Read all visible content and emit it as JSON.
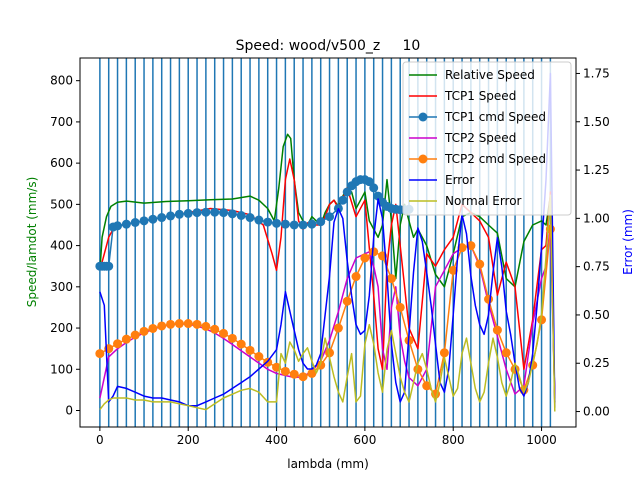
{
  "chart_data": {
    "type": "line",
    "title": "Speed: wood/v500_z     10",
    "xlabel": "lambda (mm)",
    "ylabel": "Speed/lamdot (mm/s)",
    "ylabel_right": "Error (mm)",
    "xlim": [
      -45,
      1078
    ],
    "ylim": [
      -40,
      855
    ],
    "ylim_right": [
      -0.08,
      1.83
    ],
    "xticks": [
      0,
      200,
      400,
      600,
      800,
      1000
    ],
    "yticks": [
      0,
      100,
      200,
      300,
      400,
      500,
      600,
      700,
      800
    ],
    "yticks_right": [
      0.0,
      0.25,
      0.5,
      0.75,
      1.0,
      1.25,
      1.5,
      1.75
    ],
    "vertical_lines_x": [
      0,
      20,
      40,
      60,
      80,
      100,
      120,
      140,
      160,
      180,
      200,
      220,
      240,
      260,
      280,
      300,
      320,
      340,
      360,
      380,
      400,
      420,
      440,
      460,
      480,
      500,
      520,
      540,
      560,
      580,
      600,
      620,
      640,
      660,
      680,
      700,
      720,
      740,
      760,
      780,
      800,
      820,
      840,
      860,
      880,
      900,
      920,
      940,
      960,
      980,
      1000,
      1020
    ],
    "legend_position": "upper-right",
    "series": [
      {
        "name": "Relative Speed",
        "axis": "left",
        "color": "#008000",
        "marker": "none",
        "x": [
          0,
          5,
          15,
          25,
          40,
          60,
          100,
          150,
          200,
          250,
          300,
          340,
          360,
          380,
          395,
          405,
          415,
          425,
          432,
          440,
          450,
          460,
          470,
          480,
          490,
          500,
          510,
          520,
          530,
          540,
          550,
          560,
          570,
          580,
          590,
          600,
          610,
          620,
          630,
          640,
          650,
          660,
          670,
          680,
          690,
          700,
          710,
          720,
          740,
          760,
          780,
          800,
          820,
          840,
          860,
          880,
          900,
          920,
          940,
          960,
          980,
          1000,
          1010,
          1020,
          1030
        ],
        "y": [
          340,
          420,
          470,
          495,
          505,
          508,
          503,
          507,
          509,
          511,
          513,
          520,
          510,
          490,
          460,
          540,
          640,
          670,
          660,
          560,
          480,
          460,
          450,
          470,
          460,
          450,
          480,
          500,
          510,
          495,
          520,
          540,
          530,
          490,
          510,
          530,
          460,
          440,
          420,
          450,
          560,
          460,
          320,
          450,
          500,
          460,
          420,
          440,
          400,
          330,
          300,
          380,
          470,
          480,
          470,
          450,
          430,
          320,
          300,
          410,
          450,
          460,
          450,
          520,
          20
        ]
      },
      {
        "name": "TCP1 Speed",
        "axis": "left",
        "color": "#ff0000",
        "marker": "none",
        "x": [
          0,
          10,
          20,
          30,
          50,
          100,
          150,
          200,
          250,
          300,
          340,
          370,
          390,
          400,
          410,
          420,
          430,
          440,
          450,
          460,
          470,
          480,
          490,
          500,
          510,
          520,
          530,
          540,
          560,
          580,
          600,
          620,
          630,
          640,
          650,
          660,
          670,
          680,
          700,
          720,
          740,
          760,
          780,
          800,
          820,
          840,
          860,
          880,
          900,
          920,
          940,
          960,
          980,
          1000,
          1010,
          1020,
          1030
        ],
        "y": [
          340,
          380,
          420,
          440,
          450,
          460,
          470,
          480,
          490,
          485,
          475,
          450,
          380,
          340,
          420,
          560,
          610,
          560,
          460,
          440,
          455,
          460,
          450,
          450,
          470,
          500,
          510,
          490,
          540,
          470,
          510,
          280,
          150,
          100,
          350,
          450,
          500,
          400,
          200,
          150,
          380,
          350,
          390,
          420,
          500,
          480,
          460,
          420,
          280,
          360,
          300,
          100,
          220,
          390,
          400,
          530,
          20
        ]
      },
      {
        "name": "TCP1 cmd Speed",
        "axis": "left",
        "color": "#1f77b4",
        "marker": "circle",
        "x": [
          0,
          5,
          10,
          15,
          20,
          30,
          40,
          60,
          80,
          100,
          120,
          140,
          160,
          180,
          200,
          220,
          240,
          260,
          280,
          300,
          320,
          340,
          360,
          380,
          400,
          420,
          440,
          460,
          480,
          500,
          520,
          540,
          550,
          560,
          570,
          580,
          590,
          600,
          610,
          620,
          630,
          640,
          650,
          660,
          670,
          680,
          690,
          700
        ],
        "y": [
          350,
          350,
          350,
          350,
          350,
          445,
          448,
          452,
          456,
          460,
          464,
          468,
          472,
          476,
          478,
          480,
          481,
          481,
          480,
          477,
          473,
          468,
          462,
          457,
          454,
          452,
          450,
          450,
          452,
          458,
          470,
          490,
          510,
          530,
          545,
          555,
          560,
          560,
          555,
          540,
          520,
          505,
          495,
          490,
          488,
          487,
          487,
          488
        ]
      },
      {
        "name": "TCP2 Speed",
        "axis": "left",
        "color": "#cc00cc",
        "marker": "none",
        "x": [
          0,
          20,
          40,
          60,
          80,
          100,
          120,
          140,
          160,
          180,
          200,
          220,
          240,
          260,
          280,
          300,
          320,
          340,
          360,
          380,
          400,
          420,
          440,
          460,
          480,
          500,
          520,
          540,
          560,
          580,
          600,
          610,
          620,
          630,
          640,
          650,
          660,
          670,
          680,
          690,
          700,
          720,
          740,
          760,
          780,
          800,
          820,
          840,
          860,
          880,
          900,
          920,
          940,
          960,
          980,
          1000,
          1010,
          1020,
          1030
        ],
        "y": [
          30,
          130,
          150,
          165,
          178,
          188,
          197,
          204,
          208,
          210,
          209,
          205,
          198,
          188,
          175,
          160,
          145,
          130,
          115,
          100,
          90,
          85,
          80,
          82,
          95,
          120,
          170,
          240,
          320,
          370,
          380,
          385,
          350,
          300,
          150,
          100,
          250,
          300,
          180,
          120,
          80,
          60,
          100,
          300,
          340,
          380,
          395,
          400,
          350,
          260,
          180,
          100,
          40,
          60,
          210,
          320,
          350,
          450,
          30
        ]
      },
      {
        "name": "TCP2 cmd Speed",
        "axis": "left",
        "color": "#ff7f0e",
        "marker": "circle",
        "x": [
          0,
          20,
          40,
          60,
          80,
          100,
          120,
          140,
          160,
          180,
          200,
          220,
          240,
          260,
          280,
          300,
          320,
          340,
          360,
          380,
          400,
          420,
          440,
          460,
          480,
          500,
          520,
          540,
          560,
          580,
          600,
          620,
          640,
          660,
          680,
          700,
          720,
          740,
          760,
          780,
          800,
          820,
          840,
          860,
          880,
          900,
          920,
          940,
          960,
          980,
          1000,
          1020
        ],
        "y": [
          138,
          150,
          162,
          173,
          183,
          192,
          199,
          205,
          209,
          211,
          211,
          209,
          204,
          197,
          187,
          175,
          161,
          146,
          131,
          117,
          105,
          95,
          88,
          82,
          90,
          110,
          140,
          200,
          265,
          325,
          370,
          385,
          375,
          320,
          250,
          170,
          100,
          60,
          40,
          140,
          340,
          395,
          400,
          355,
          270,
          195,
          140,
          100,
          50,
          110,
          220,
          440
        ]
      },
      {
        "name": "Error",
        "axis": "right",
        "color": "#0000ff",
        "marker": "none",
        "x": [
          0,
          10,
          20,
          30,
          40,
          60,
          80,
          100,
          120,
          140,
          160,
          180,
          200,
          220,
          240,
          260,
          280,
          300,
          320,
          340,
          360,
          380,
          400,
          410,
          420,
          430,
          440,
          450,
          460,
          470,
          480,
          490,
          500,
          510,
          520,
          530,
          540,
          550,
          560,
          570,
          580,
          590,
          600,
          610,
          620,
          630,
          640,
          650,
          660,
          670,
          680,
          690,
          700,
          710,
          720,
          730,
          740,
          750,
          760,
          770,
          780,
          790,
          800,
          810,
          820,
          830,
          840,
          850,
          860,
          870,
          880,
          890,
          900,
          910,
          920,
          930,
          940,
          950,
          960,
          970,
          980,
          990,
          1000,
          1010,
          1020,
          1030
        ],
        "y": [
          0.62,
          0.55,
          0.05,
          0.08,
          0.13,
          0.12,
          0.1,
          0.08,
          0.07,
          0.07,
          0.06,
          0.05,
          0.03,
          0.03,
          0.05,
          0.07,
          0.09,
          0.12,
          0.15,
          0.18,
          0.22,
          0.26,
          0.32,
          0.45,
          0.62,
          0.52,
          0.42,
          0.32,
          0.25,
          0.22,
          0.22,
          0.24,
          0.3,
          0.5,
          0.7,
          0.98,
          1.05,
          1.0,
          0.78,
          0.6,
          0.45,
          0.4,
          0.42,
          0.6,
          0.9,
          1.1,
          1.0,
          0.7,
          0.35,
          0.15,
          0.05,
          0.1,
          0.4,
          0.72,
          0.95,
          0.88,
          0.72,
          0.55,
          0.35,
          0.15,
          0.1,
          0.22,
          0.5,
          0.8,
          1.02,
          0.92,
          0.7,
          0.55,
          0.45,
          0.4,
          0.5,
          0.72,
          0.9,
          0.75,
          0.52,
          0.4,
          0.25,
          0.12,
          0.08,
          0.15,
          0.3,
          0.55,
          0.85,
          1.2,
          1.75,
          0.02
        ]
      },
      {
        "name": "Normal Error",
        "axis": "right",
        "color": "#bcbd22",
        "marker": "none",
        "x": [
          0,
          10,
          20,
          30,
          40,
          60,
          80,
          100,
          120,
          140,
          160,
          180,
          200,
          220,
          240,
          260,
          280,
          300,
          320,
          340,
          360,
          380,
          400,
          410,
          420,
          430,
          440,
          450,
          460,
          470,
          480,
          490,
          500,
          510,
          520,
          530,
          540,
          550,
          560,
          570,
          580,
          590,
          600,
          610,
          620,
          630,
          640,
          650,
          660,
          670,
          680,
          690,
          700,
          710,
          720,
          730,
          740,
          750,
          760,
          770,
          780,
          790,
          800,
          810,
          820,
          830,
          840,
          850,
          860,
          870,
          880,
          890,
          900,
          910,
          920,
          930,
          940,
          950,
          960,
          970,
          980,
          990,
          1000,
          1010,
          1020,
          1030
        ],
        "y": [
          0.01,
          0.04,
          0.06,
          0.07,
          0.07,
          0.07,
          0.06,
          0.06,
          0.05,
          0.05,
          0.05,
          0.04,
          0.03,
          0.02,
          0.01,
          0.04,
          0.07,
          0.09,
          0.11,
          0.12,
          0.1,
          0.05,
          0.05,
          0.3,
          0.25,
          0.36,
          0.32,
          0.26,
          0.3,
          0.33,
          0.26,
          0.2,
          0.25,
          0.38,
          0.28,
          0.18,
          0.1,
          0.05,
          0.18,
          0.3,
          0.05,
          0.08,
          0.35,
          0.45,
          0.35,
          0.2,
          0.1,
          0.32,
          0.42,
          0.3,
          0.18,
          0.1,
          0.05,
          0.15,
          0.25,
          0.3,
          0.22,
          0.12,
          0.05,
          0.15,
          0.28,
          0.18,
          0.08,
          0.12,
          0.3,
          0.38,
          0.25,
          0.12,
          0.05,
          0.1,
          0.25,
          0.38,
          0.28,
          0.15,
          0.08,
          0.15,
          0.25,
          0.18,
          0.1,
          0.15,
          0.25,
          0.35,
          0.5,
          0.8,
          1.12,
          0.0
        ]
      }
    ]
  }
}
